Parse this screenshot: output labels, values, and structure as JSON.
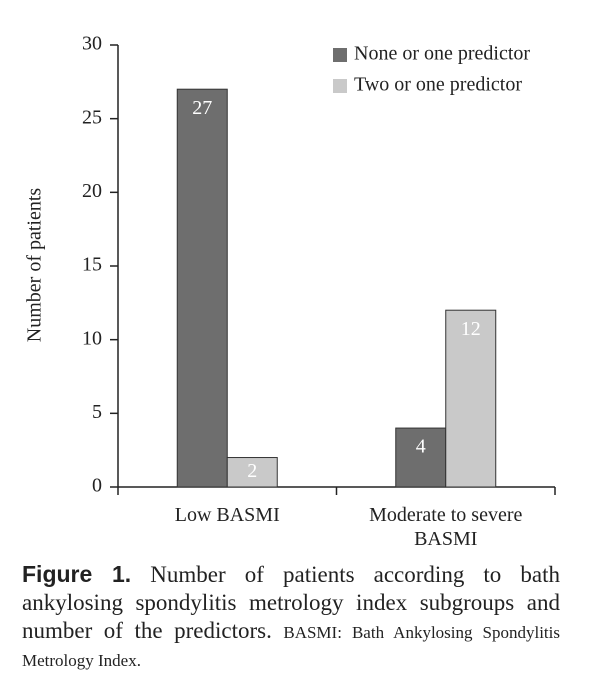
{
  "chart_data": {
    "type": "bar",
    "y_label": "Number of patients",
    "categories": [
      "Low BASMI",
      "Moderate to severe BASMI"
    ],
    "series": [
      {
        "name": "None or one predictor",
        "color": "#6e6e6e",
        "values": [
          27,
          4
        ]
      },
      {
        "name": "Two or one predictor",
        "color": "#c9c9c9",
        "values": [
          2,
          12
        ]
      }
    ],
    "ylim": [
      0,
      30
    ],
    "yticks": [
      0,
      5,
      10,
      15,
      20,
      25,
      30
    ],
    "legend": "upper right",
    "grid": false
  },
  "caption": {
    "label": "Figure 1.",
    "text": "Number of patients according to bath ankylosing spondylitis metrology index subgroups and number of the predictors.",
    "abbreviation": "BASMI: Bath Ankylosing Spondylitis Metrology Index."
  }
}
